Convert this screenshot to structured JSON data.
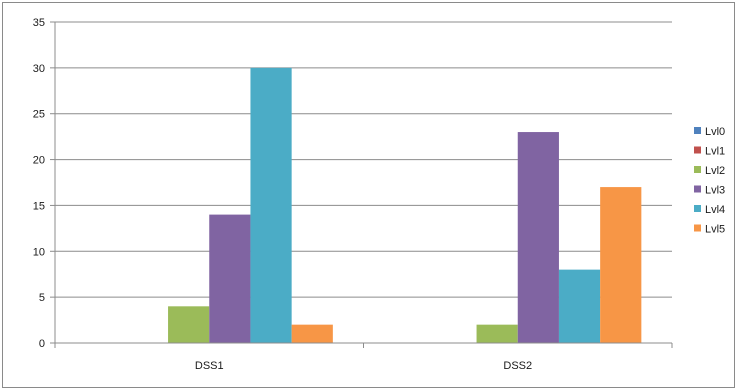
{
  "chart_data": {
    "type": "bar",
    "title": "",
    "xlabel": "",
    "ylabel": "",
    "categories": [
      "DSS1",
      "DSS2"
    ],
    "ylim": [
      0,
      35
    ],
    "yticks": [
      0,
      5,
      10,
      15,
      20,
      25,
      30,
      35
    ],
    "grid": true,
    "legend_position": "right",
    "series": [
      {
        "name": "Lvl0",
        "color": "#4f81bd",
        "values": [
          0,
          0
        ]
      },
      {
        "name": "Lvl1",
        "color": "#c0504d",
        "values": [
          0,
          0
        ]
      },
      {
        "name": "Lvl2",
        "color": "#9bbb59",
        "values": [
          4,
          2
        ]
      },
      {
        "name": "Lvl3",
        "color": "#8064a2",
        "values": [
          14,
          23
        ]
      },
      {
        "name": "Lvl4",
        "color": "#4bacc6",
        "values": [
          30,
          8
        ]
      },
      {
        "name": "Lvl5",
        "color": "#f79646",
        "values": [
          2,
          17
        ]
      }
    ]
  }
}
